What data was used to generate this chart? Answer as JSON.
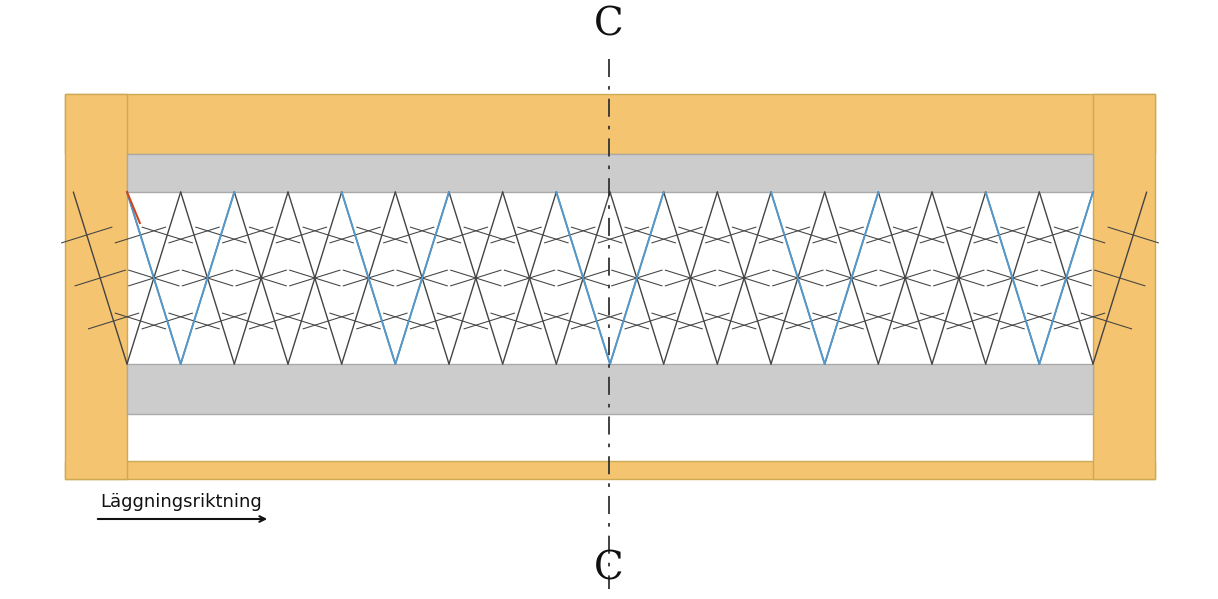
{
  "bg_color": "#ffffff",
  "frame_color": "#f5c470",
  "frame_outline": "#ccaa55",
  "gray_bar_color": "#cccccc",
  "gray_bar_outline": "#aaaaaa",
  "parquet_line_color": "#444444",
  "blue_line_color": "#5599cc",
  "red_line_color": "#cc4422",
  "center_line_color": "#333333",
  "arrow_color": "#111111",
  "text_color": "#111111",
  "label_C": "C",
  "label_direction": "Läggningsriktning",
  "fig_width": 12.18,
  "fig_height": 5.99
}
